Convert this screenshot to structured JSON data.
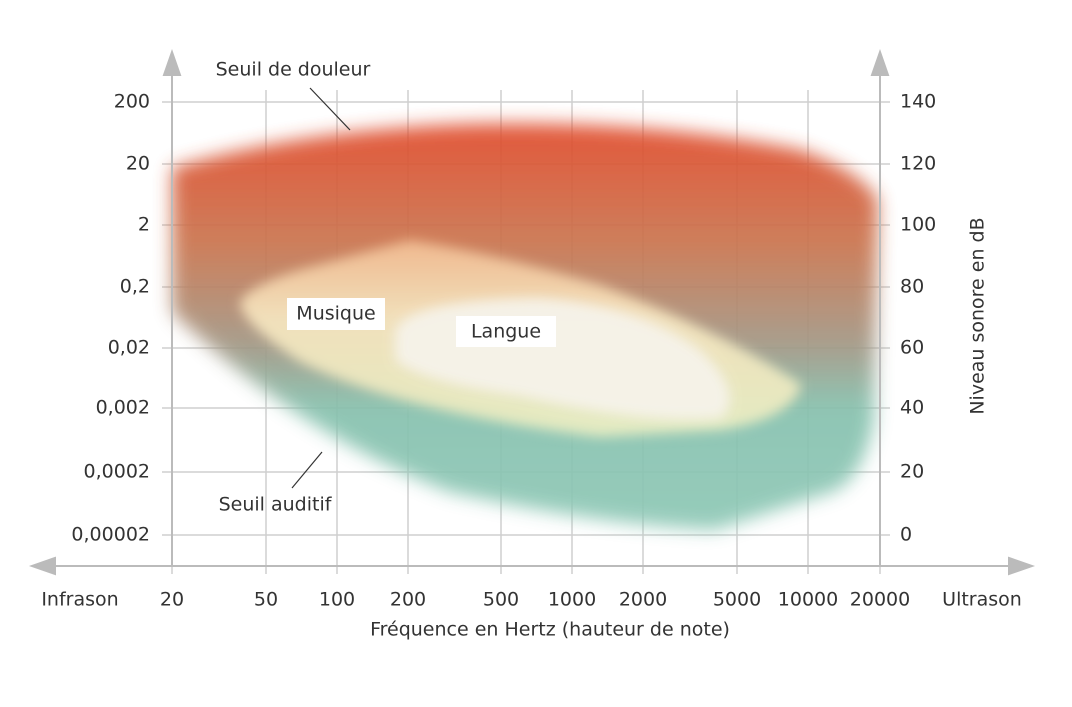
{
  "labels": {
    "pain_threshold": "Seuil de douleur",
    "hearing_threshold": "Seuil auditif",
    "music": "Musique",
    "speech": "Langue"
  },
  "left_axis": {
    "ticks": [
      "200",
      "20",
      "2",
      "0,2",
      "0,02",
      "0,002",
      "0,0002",
      "0,00002"
    ]
  },
  "right_axis": {
    "title": "Niveau sonore en dB",
    "ticks": [
      "140",
      "120",
      "100",
      "80",
      "60",
      "40",
      "20",
      "0"
    ]
  },
  "x_axis": {
    "title": "Fréquence en Hertz (hauteur de note)",
    "left_end": "Infrason",
    "right_end": "Ultrason",
    "ticks": [
      "20",
      "50",
      "100",
      "200",
      "500",
      "1000",
      "2000",
      "5000",
      "10000",
      "20000"
    ]
  }
}
